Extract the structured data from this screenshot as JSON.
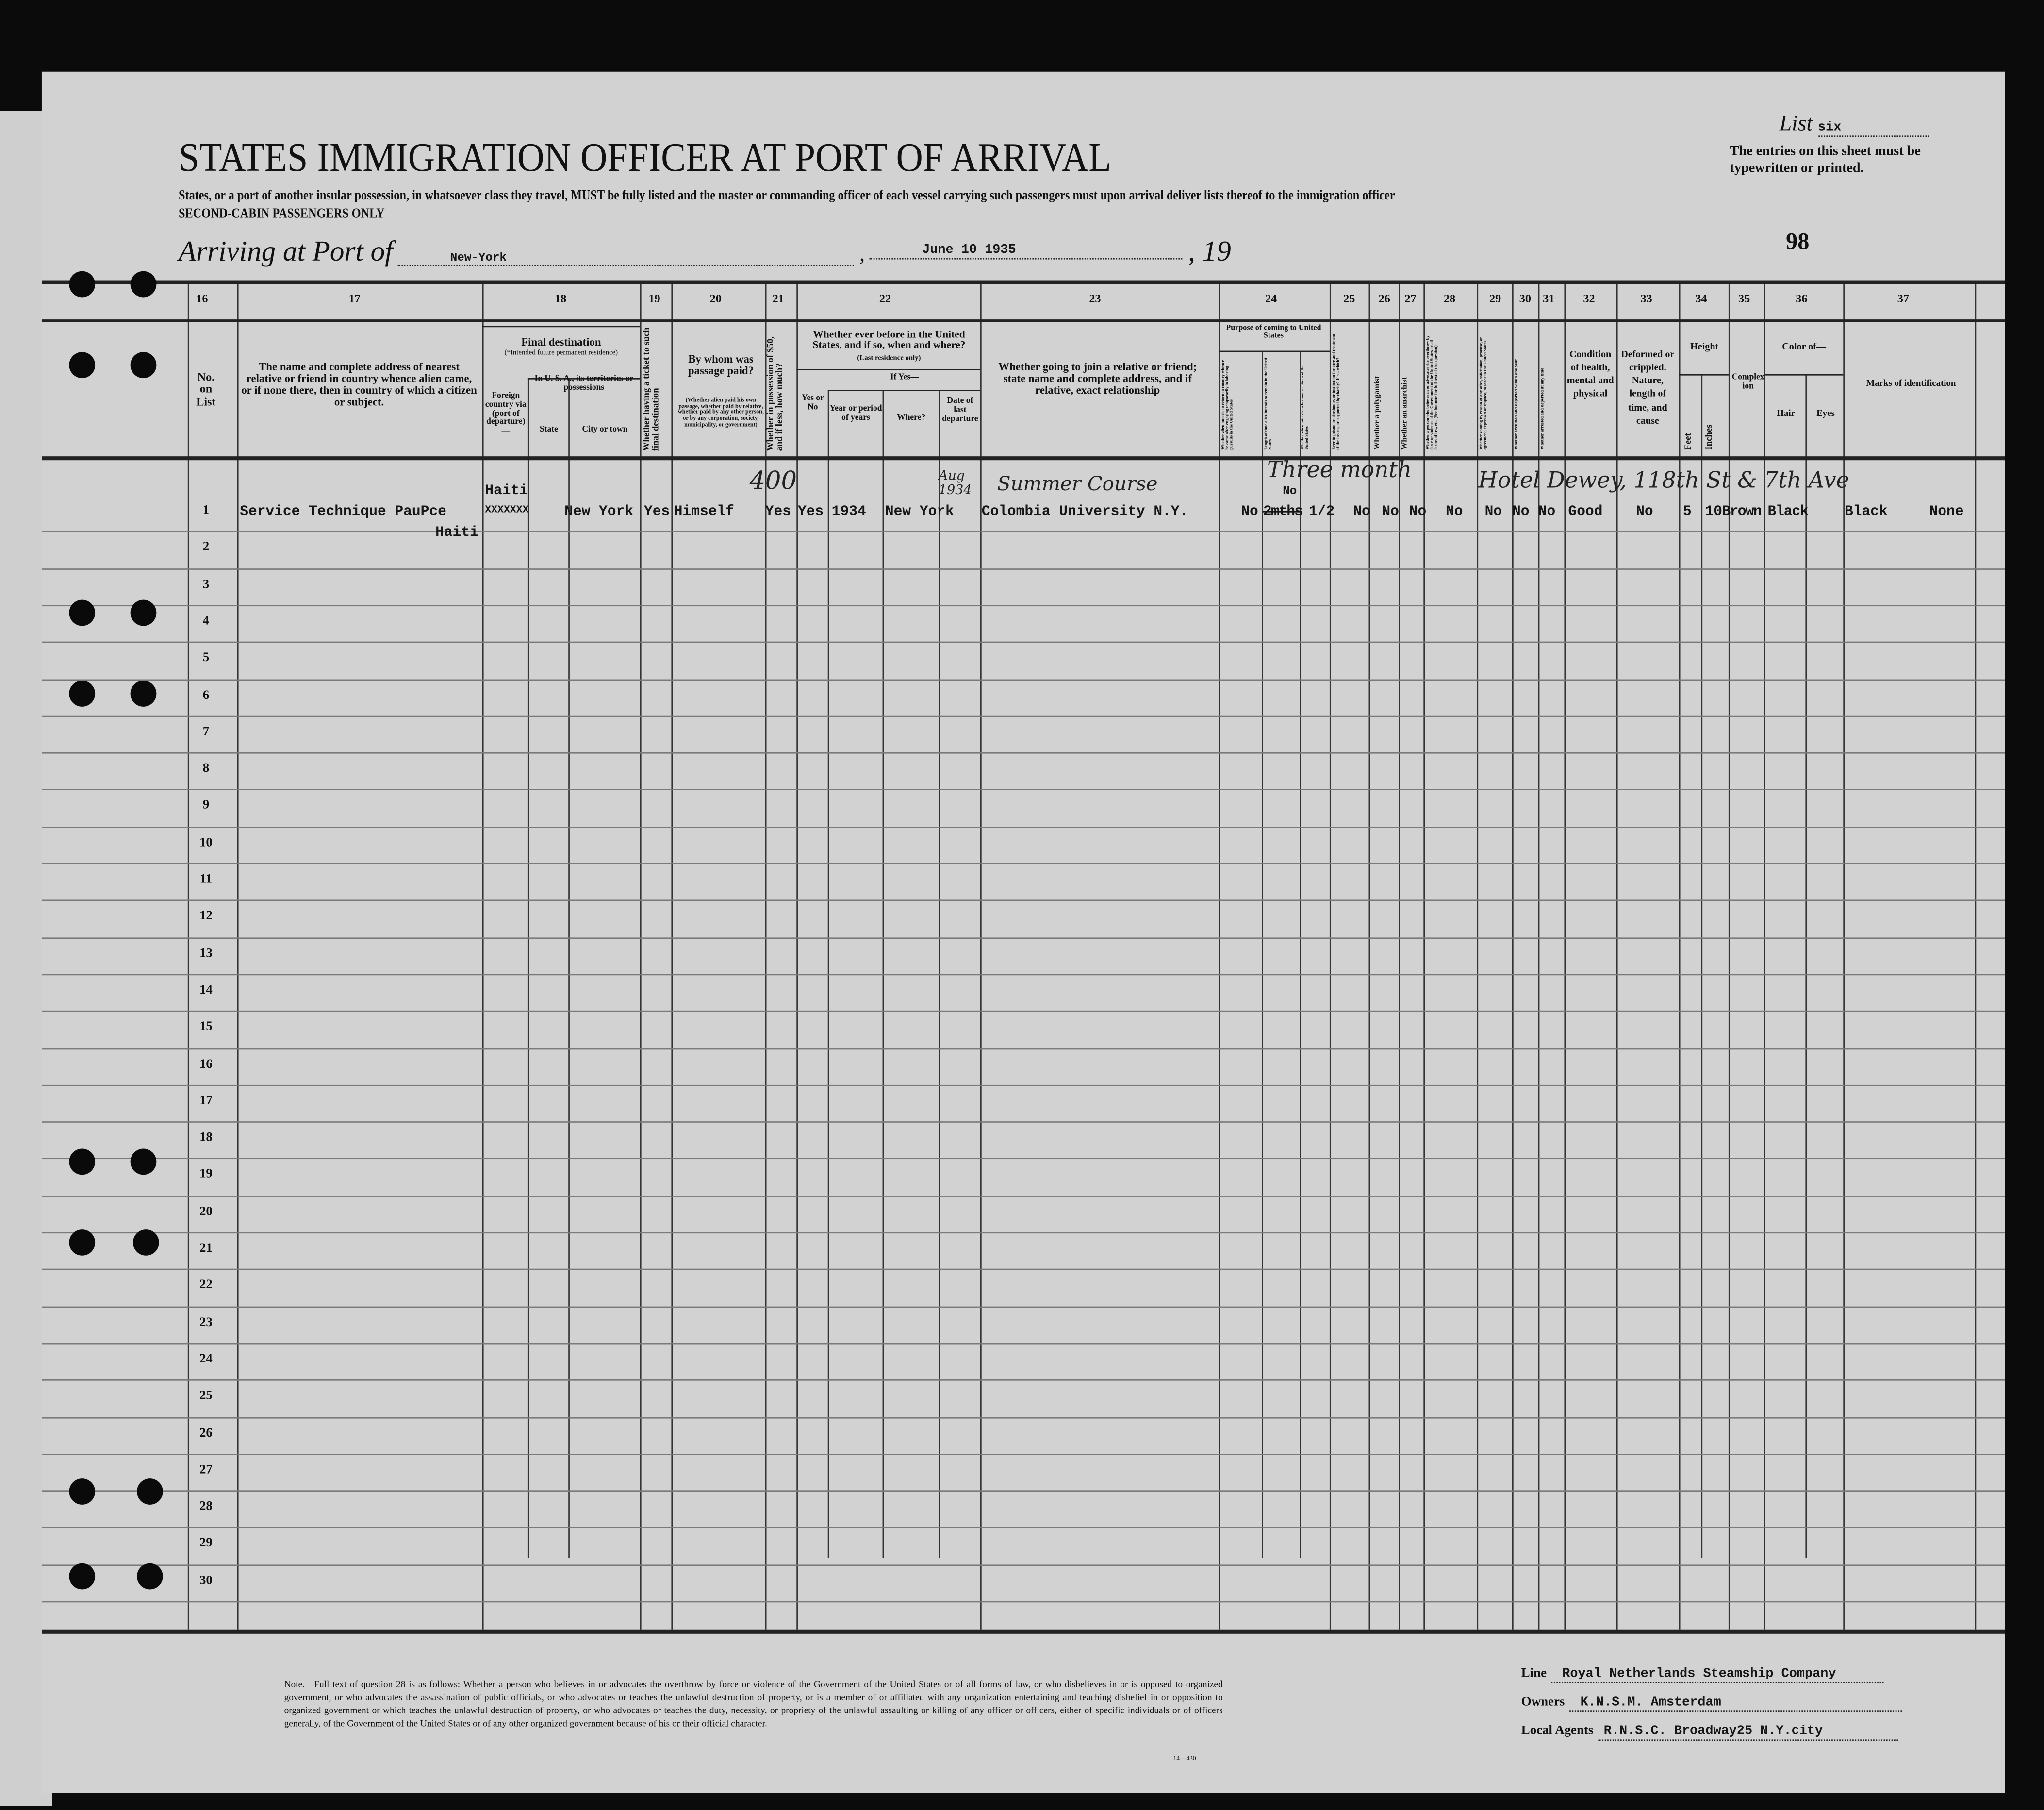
{
  "header": {
    "title": "STATES IMMIGRATION OFFICER AT PORT OF ARRIVAL",
    "instruction": "States, or a port of another insular possession, in whatsoever class they travel, MUST be fully listed and the master or commanding officer of each vessel carrying such passengers must upon arrival deliver lists thereof to the immigration officer",
    "class": "SECOND-CABIN PASSENGERS ONLY",
    "list_label": "List",
    "list_value": "six",
    "typewritten_note": "The entries on this sheet must be typewritten or printed.",
    "arriving_label": "Arriving at Port of",
    "port": "New-York",
    "date": "June 10   1935",
    "year_prefix": "19",
    "page_number": "98"
  },
  "columns": {
    "numbers": [
      "16",
      "17",
      "18",
      "19",
      "20",
      "21",
      "22",
      "23",
      "24",
      "25",
      "26",
      "27",
      "28",
      "29",
      "30",
      "31",
      "32",
      "33",
      "34",
      "35",
      "36",
      "37"
    ],
    "c16": "No. on List",
    "c17": "The name and complete address of nearest relative or friend in country whence alien came, or if none there, then in country of which a citizen or subject.",
    "c18_title": "Final destination",
    "c18_sub": "(*Intended future permanent residence)",
    "c18_foreign": "Foreign country via (port of departure)—",
    "c18_usa": "In U. S. A., its territories or possessions",
    "c18_state": "State",
    "c18_city": "City or town",
    "c19": "Whether having a ticket to such final destination",
    "c20_title": "By whom was passage paid?",
    "c20_sub": "(Whether alien paid his own passage, whether paid by relative, whether paid by any other person, or by any corporation, society, municipality, or government)",
    "c21": "Whether in possession of $50, and if less, how much?",
    "c22_title": "Whether ever before in the United States, and if so, when and where?",
    "c22_sub": "(Last residence only)",
    "c22_ifyes": "If Yes—",
    "c22_yesno": "Yes or No",
    "c22_year": "Year or period of years",
    "c22_where": "Where?",
    "c22_date": "Date of last departure",
    "c23": "Whether going to join a relative or friend; state name and complete address, and if relative, exact relationship",
    "c24_title": "Purpose of coming to United States",
    "c24_a": "Whether alien intends to return to country whence he came after engaging temporarily in laboring pursuits in the United States",
    "c24_b": "Length of time alien intends to remain in the United States",
    "c24_c": "Whether alien intends to become a citizen of the United States",
    "c25": "Ever in prison or almshouse, or institution for care and treatment of the insane, or supported by charity? If so, which?",
    "c26": "Whether a polygamist",
    "c27": "Whether an anarchist",
    "c28": "Whether a person who believes in or advocates the overthrow by force or violence of the Government of the United States or all forms of law, etc. (See footnote for full text of this question)",
    "c29": "Whether coming by reason of any offer, solicitation, promise, or agreement, expressed or implied, to labor in the United States",
    "c30": "Whether excluded and deported within one year",
    "c31": "Whether arrested and deported at any time",
    "c32": "Condition of health, mental and physical",
    "c33": "Deformed or crippled. Nature, length of time, and cause",
    "c34_title": "Height",
    "c34_feet": "Feet",
    "c34_inches": "Inches",
    "c35": "Complexion",
    "c36_title": "Color of—",
    "c36_hair": "Hair",
    "c36_eyes": "Eyes",
    "c37": "Marks of identification"
  },
  "row_numbers": [
    "1",
    "2",
    "3",
    "4",
    "5",
    "6",
    "7",
    "8",
    "9",
    "10",
    "11",
    "12",
    "13",
    "14",
    "15",
    "16",
    "17",
    "18",
    "19",
    "20",
    "21",
    "22",
    "23",
    "24",
    "25",
    "26",
    "27",
    "28",
    "29",
    "30"
  ],
  "entry": {
    "relative_address": "Service Technique PauPce",
    "relative_country": "Haiti",
    "foreign_country": "Haiti",
    "foreign_struck": "XXXXXXX",
    "city": "New York",
    "ticket": "Yes",
    "passage_paid": "Himself",
    "money_handwritten": "400",
    "money": "Yes",
    "before_in_us": "Yes",
    "year": "1934",
    "where": "New York",
    "last_departure_handwritten": "Aug 1934",
    "joining": "Colombia University   N.Y.",
    "joining_handwritten": "Summer Course",
    "c24_a": "No",
    "c24_b_struck": "2mths",
    "c24_b": "1/2",
    "c24_b_handwritten": "Three month",
    "c24_b_overwritten": "No",
    "c25": "No",
    "c26": "No",
    "c27": "No",
    "c28": "No",
    "c29": "No",
    "c30": "No",
    "c31": "No",
    "health": "Good",
    "deformed": "No",
    "feet": "5",
    "inches": "10",
    "complexion": "Brown",
    "hair": "Black",
    "eyes": "Black",
    "marks": "None",
    "address_handwritten": "Hotel Dewey, 118th St & 7th Ave"
  },
  "footer": {
    "note": "Note.—Full text of question 28 is as follows: Whether a person who believes in or advocates the overthrow by force or violence of the Government of the United States or of all forms of law, or who disbelieves in or is opposed to organized government, or who advocates the assassination of public officials, or who advocates or teaches the unlawful destruction of property, or is a member of or affiliated with any organization entertaining and teaching disbelief in or opposition to organized government or which teaches the unlawful destruction of property, or who advocates or teaches the duty, necessity, or propriety of the unlawful assaulting or killing of any officer or officers, either of specific individuals or of officers generally, of the Government of the United States or of any other organized government because of his or their official character.",
    "form_number": "14—430",
    "line_label": "Line",
    "line_value": "Royal Netherlands Steamship Company",
    "owners_label": "Owners",
    "owners_value": "K.N.S.M.   Amsterdam",
    "agents_label": "Local Agents",
    "agents_value": "R.N.S.C. Broadway25 N.Y.city"
  }
}
